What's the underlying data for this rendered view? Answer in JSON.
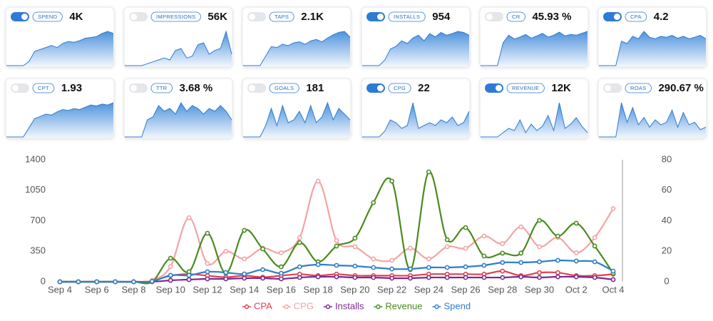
{
  "cards": [
    {
      "label": "SPEND",
      "value": "4K",
      "enabled": true,
      "sparkline": [
        0,
        0,
        0,
        0,
        10,
        35,
        40,
        45,
        50,
        45,
        55,
        60,
        58,
        62,
        68,
        70,
        72,
        80,
        85,
        80
      ]
    },
    {
      "label": "IMPRESSIONS",
      "value": "56K",
      "enabled": false,
      "sparkline": [
        0,
        0,
        0,
        0,
        5,
        10,
        15,
        20,
        15,
        40,
        45,
        20,
        25,
        55,
        60,
        30,
        40,
        45,
        90,
        30
      ]
    },
    {
      "label": "TAPS",
      "value": "2.1K",
      "enabled": false,
      "sparkline": [
        0,
        0,
        0,
        0,
        20,
        40,
        38,
        45,
        42,
        48,
        50,
        45,
        52,
        55,
        50,
        58,
        65,
        70,
        72,
        60
      ]
    },
    {
      "label": "INSTALLS",
      "value": "954",
      "enabled": true,
      "sparkline": [
        0,
        0,
        0,
        0,
        10,
        30,
        35,
        45,
        40,
        50,
        55,
        45,
        58,
        52,
        60,
        55,
        58,
        62,
        60,
        55
      ]
    },
    {
      "label": "CR",
      "value": "45.93 %",
      "enabled": false,
      "sparkline": [
        0,
        0,
        0,
        0,
        60,
        80,
        70,
        75,
        82,
        72,
        78,
        85,
        75,
        80,
        88,
        78,
        82,
        80,
        85,
        90
      ]
    },
    {
      "label": "CPA",
      "value": "4.2",
      "enabled": true,
      "sparkline": [
        0,
        0,
        0,
        0,
        50,
        45,
        60,
        55,
        70,
        58,
        55,
        60,
        58,
        62,
        56,
        60,
        55,
        58,
        62,
        55
      ]
    },
    {
      "label": "CPT",
      "value": "1.93",
      "enabled": false,
      "sparkline": [
        0,
        0,
        0,
        0,
        20,
        40,
        45,
        50,
        48,
        55,
        60,
        58,
        62,
        60,
        65,
        70,
        68,
        72,
        70,
        75
      ]
    },
    {
      "label": "TTR",
      "value": "3.68 %",
      "enabled": false,
      "sparkline": [
        0,
        0,
        0,
        0,
        30,
        35,
        55,
        45,
        50,
        40,
        60,
        45,
        55,
        50,
        40,
        50,
        45,
        55,
        45,
        30
      ]
    },
    {
      "label": "GOALS",
      "value": "181",
      "enabled": false,
      "sparkline": [
        0,
        0,
        0,
        0,
        20,
        50,
        20,
        55,
        25,
        30,
        45,
        25,
        55,
        25,
        35,
        60,
        30,
        50,
        40,
        30
      ]
    },
    {
      "label": "CPG",
      "value": "22",
      "enabled": true,
      "sparkline": [
        0,
        0,
        0,
        0,
        10,
        30,
        25,
        15,
        20,
        60,
        15,
        20,
        25,
        20,
        30,
        25,
        35,
        20,
        25,
        45
      ]
    },
    {
      "label": "REVENUE",
      "value": "12K",
      "enabled": true,
      "sparkline": [
        0,
        0,
        0,
        0,
        10,
        20,
        15,
        40,
        10,
        30,
        15,
        25,
        50,
        15,
        80,
        20,
        30,
        45,
        25,
        10
      ]
    },
    {
      "label": "ROAS",
      "value": "290.67 %",
      "enabled": false,
      "sparkline": [
        0,
        0,
        0,
        0,
        70,
        30,
        60,
        25,
        40,
        20,
        35,
        25,
        30,
        55,
        20,
        50,
        25,
        30,
        15,
        20
      ]
    }
  ],
  "chart_data": {
    "type": "line",
    "categories": [
      "Sep 4",
      null,
      "Sep 6",
      null,
      "Sep 8",
      null,
      "Sep 10",
      null,
      "Sep 12",
      null,
      "Sep 14",
      null,
      "Sep 16",
      null,
      "Sep 18",
      null,
      "Sep 20",
      null,
      "Sep 22",
      null,
      "Sep 24",
      null,
      "Sep 26",
      null,
      "Sep 28",
      null,
      "Sep 30",
      null,
      "Oct 2",
      null,
      "Oct 4"
    ],
    "series": [
      {
        "name": "CPA",
        "color": "#e0414f",
        "axis": "y2",
        "values": [
          0,
          0,
          0,
          0,
          0,
          0.5,
          4,
          5,
          4,
          3,
          4,
          3,
          4,
          5,
          4,
          5,
          4,
          4,
          4,
          4,
          5,
          5,
          5,
          5,
          7,
          4,
          6,
          6,
          4,
          4,
          5
        ]
      },
      {
        "name": "CPG",
        "color": "#f4a3a3",
        "axis": "y2",
        "values": [
          0,
          0,
          0,
          0,
          0,
          1,
          10,
          42,
          12,
          20,
          15,
          22,
          19,
          29,
          66,
          27,
          23,
          15,
          14,
          22,
          15,
          23,
          22,
          30,
          25,
          36,
          23,
          29,
          19,
          29,
          48
        ]
      },
      {
        "name": "Installs",
        "color": "#7b2a8f",
        "values": [
          0,
          0,
          0,
          0,
          0,
          0,
          16,
          25,
          33,
          33,
          41,
          41,
          33,
          49,
          57,
          57,
          49,
          49,
          41,
          41,
          49,
          49,
          49,
          49,
          49,
          57,
          49,
          57,
          57,
          49,
          25
        ]
      },
      {
        "name": "Revenue",
        "color": "#4a8a1c",
        "values": [
          0,
          0,
          0,
          0,
          0,
          0,
          270,
          115,
          557,
          98,
          590,
          377,
          172,
          450,
          229,
          410,
          500,
          909,
          1155,
          139,
          1261,
          483,
          622,
          295,
          328,
          328,
          704,
          524,
          672,
          410,
          98
        ]
      },
      {
        "name": "Spend",
        "color": "#2f7fc6",
        "values": [
          0,
          0,
          0,
          0,
          0,
          5,
          74,
          74,
          115,
          106,
          90,
          139,
          98,
          172,
          197,
          188,
          180,
          164,
          147,
          147,
          164,
          164,
          172,
          188,
          221,
          221,
          229,
          246,
          238,
          229,
          123
        ]
      }
    ],
    "ylim": [
      0,
      1400
    ],
    "yticks": [
      0,
      350,
      700,
      1050,
      1400
    ],
    "y2lim": [
      0,
      80
    ],
    "y2ticks": [
      0,
      20,
      40,
      60,
      80
    ],
    "legend": "bottom"
  }
}
